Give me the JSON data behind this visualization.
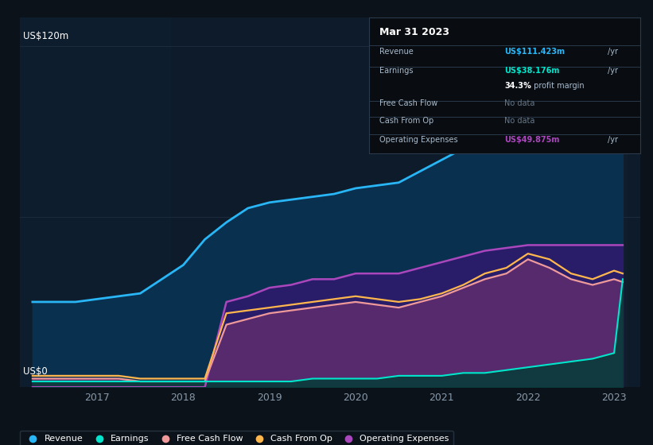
{
  "bg_color": "#0c1219",
  "chart_bg": "#0d1b2a",
  "ylabel_top": "US$120m",
  "ylabel_bottom": "US$0",
  "x_years": [
    2016.25,
    2016.5,
    2016.75,
    2017.0,
    2017.25,
    2017.5,
    2017.75,
    2018.0,
    2018.25,
    2018.5,
    2018.75,
    2019.0,
    2019.25,
    2019.5,
    2019.75,
    2020.0,
    2020.25,
    2020.5,
    2020.75,
    2021.0,
    2021.25,
    2021.5,
    2021.75,
    2022.0,
    2022.25,
    2022.5,
    2022.75,
    2023.0,
    2023.1
  ],
  "revenue": [
    30,
    30,
    30,
    31,
    32,
    33,
    38,
    43,
    52,
    58,
    63,
    65,
    66,
    67,
    68,
    70,
    71,
    72,
    76,
    80,
    84,
    88,
    88,
    90,
    87,
    86,
    88,
    100,
    111
  ],
  "earnings": [
    2,
    2,
    2,
    2,
    2,
    2,
    2,
    2,
    2,
    2,
    2,
    2,
    2,
    3,
    3,
    3,
    3,
    4,
    4,
    4,
    5,
    5,
    6,
    7,
    8,
    9,
    10,
    12,
    38
  ],
  "free_cash_flow": [
    3,
    3,
    3,
    3,
    3,
    2,
    2,
    2,
    2,
    22,
    24,
    26,
    27,
    28,
    29,
    30,
    29,
    28,
    30,
    32,
    35,
    38,
    40,
    45,
    42,
    38,
    36,
    38,
    37
  ],
  "cash_from_op": [
    4,
    4,
    4,
    4,
    4,
    3,
    3,
    3,
    3,
    26,
    27,
    28,
    29,
    30,
    31,
    32,
    31,
    30,
    31,
    33,
    36,
    40,
    42,
    47,
    45,
    40,
    38,
    41,
    40
  ],
  "op_expenses": [
    0,
    0,
    0,
    0,
    0,
    0,
    0,
    0,
    0,
    30,
    32,
    35,
    36,
    38,
    38,
    40,
    40,
    40,
    42,
    44,
    46,
    48,
    49,
    50,
    50,
    50,
    50,
    50,
    50
  ],
  "revenue_color": "#29b6f6",
  "revenue_fill": "#0a3a5c",
  "earnings_color": "#00e5cc",
  "free_cf_color": "#ef9a9a",
  "cash_op_color": "#ffb74d",
  "op_exp_color": "#ab47bc",
  "op_exp_fill": "#2d1b6e",
  "free_cf_fill": "#5a2060",
  "grid_color": "#1e2d40",
  "highlight_x_start": 2022.35,
  "highlight_x_end": 2023.15,
  "xlim_start": 2016.1,
  "xlim_end": 2023.3,
  "ylim_min": 0,
  "ylim_max": 130,
  "xticks": [
    2017,
    2018,
    2019,
    2020,
    2021,
    2022,
    2023
  ],
  "xtick_labels": [
    "2017",
    "2018",
    "2019",
    "2020",
    "2021",
    "2022",
    "2023"
  ],
  "tooltip": {
    "date": "Mar 31 2023",
    "rows": [
      {
        "label": "Revenue",
        "value": "US$111.423m",
        "suffix": "/yr",
        "color": "#29b6f6",
        "is_nodata": false
      },
      {
        "label": "Earnings",
        "value": "US$38.176m",
        "suffix": "/yr",
        "color": "#00e5cc",
        "is_nodata": false
      },
      {
        "label": "",
        "value": "34.3%",
        "suffix": " profit margin",
        "color": "white",
        "is_nodata": false
      },
      {
        "label": "Free Cash Flow",
        "value": "No data",
        "suffix": "",
        "color": "#667788",
        "is_nodata": true
      },
      {
        "label": "Cash From Op",
        "value": "No data",
        "suffix": "",
        "color": "#667788",
        "is_nodata": true
      },
      {
        "label": "Operating Expenses",
        "value": "US$49.875m",
        "suffix": "/yr",
        "color": "#ab47bc",
        "is_nodata": false
      }
    ]
  },
  "legend_items": [
    "Revenue",
    "Earnings",
    "Free Cash Flow",
    "Cash From Op",
    "Operating Expenses"
  ],
  "legend_colors": [
    "#29b6f6",
    "#00e5cc",
    "#ef9a9a",
    "#ffb74d",
    "#ab47bc"
  ]
}
